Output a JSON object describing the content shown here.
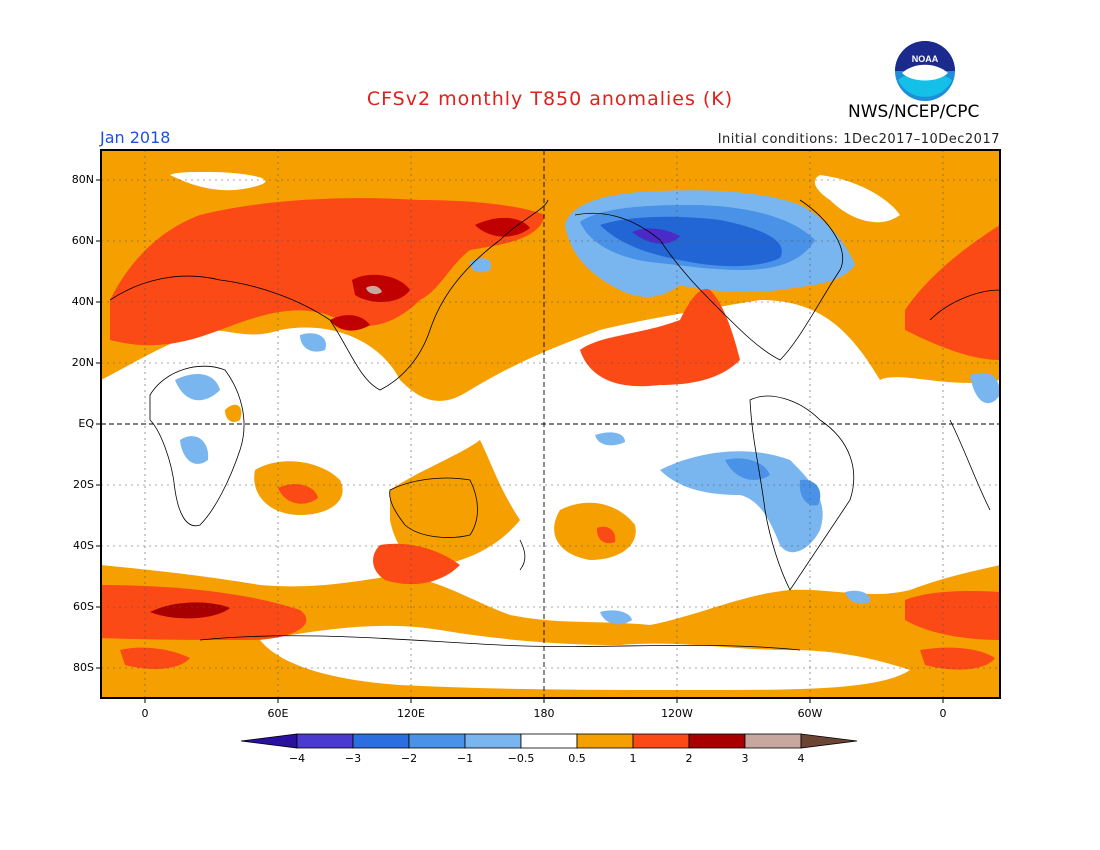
{
  "header": {
    "title": "CFSv2 monthly T850 anomalies (K)",
    "title_color": "#e0201a",
    "organization": "NWS/NCEP/CPC",
    "logo_text": "NOAA",
    "period": "Jan 2018",
    "period_color": "#1f4fe0",
    "initial_conditions": "Initial conditions: 1Dec2017–10Dec2017"
  },
  "map": {
    "lat_labels": [
      "80N",
      "60N",
      "40N",
      "20N",
      "EQ",
      "20S",
      "40S",
      "60S",
      "80S"
    ],
    "lon_labels": [
      "0",
      "60E",
      "120E",
      "180",
      "120W",
      "60W",
      "0"
    ],
    "colors": {
      "ocean_land_neutral": "#ffffff",
      "anom_0_5_to_1": "#f5a000",
      "anom_1_to_2": "#fb4a16",
      "anom_2_to_3": "#c00000",
      "anom_3_to_4": "#c8a89e",
      "anom_m0_5_to_m1": "#79b6f0",
      "anom_m1_to_m2": "#4a92e8",
      "anom_m2_to_m3": "#2266d6",
      "anom_m3_to_m4": "#4a2bc8"
    }
  },
  "colorbar": {
    "labels": [
      "−4",
      "−3",
      "−2",
      "−1",
      "−0.5",
      "0.5",
      "1",
      "2",
      "3",
      "4"
    ],
    "colors": [
      "#2a10a0",
      "#4a3ad0",
      "#2a6ee0",
      "#4a92e8",
      "#79b6f0",
      "#ffffff",
      "#f5a000",
      "#fb4a16",
      "#a80000",
      "#c8a89e",
      "#6b4433"
    ]
  }
}
